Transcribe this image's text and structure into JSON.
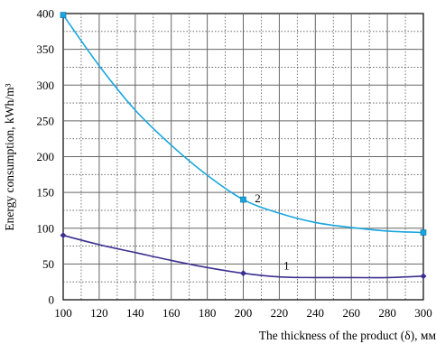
{
  "chart_data": {
    "type": "line",
    "xlabel": "The thickness of the product (δ), мм",
    "ylabel": "Energy consumption, kWh/m³",
    "xlim": [
      100,
      300
    ],
    "ylim": [
      0,
      400
    ],
    "xticks": [
      100,
      120,
      140,
      160,
      180,
      200,
      220,
      240,
      260,
      280,
      300
    ],
    "yticks": [
      0,
      50,
      100,
      150,
      200,
      250,
      300,
      350,
      400
    ],
    "grid": true,
    "series": [
      {
        "name": "1",
        "color": "#3b2f8f",
        "marker": "diamond",
        "points": [
          [
            100,
            90
          ],
          [
            200,
            37
          ],
          [
            300,
            33
          ]
        ],
        "curve": [
          [
            100,
            90
          ],
          [
            120,
            77
          ],
          [
            140,
            66
          ],
          [
            160,
            55
          ],
          [
            180,
            45
          ],
          [
            200,
            37
          ],
          [
            220,
            32
          ],
          [
            240,
            31
          ],
          [
            260,
            31
          ],
          [
            280,
            31
          ],
          [
            300,
            33
          ]
        ],
        "label_at": [
          224,
          42
        ]
      },
      {
        "name": "2",
        "color": "#1aa6df",
        "marker": "square",
        "points": [
          [
            100,
            398
          ],
          [
            200,
            140
          ],
          [
            300,
            94
          ]
        ],
        "curve": [
          [
            100,
            398
          ],
          [
            120,
            327
          ],
          [
            140,
            265
          ],
          [
            160,
            216
          ],
          [
            180,
            174
          ],
          [
            200,
            140
          ],
          [
            220,
            121
          ],
          [
            240,
            108
          ],
          [
            260,
            101
          ],
          [
            280,
            96
          ],
          [
            300,
            94
          ]
        ],
        "label_at": [
          208,
          136
        ]
      }
    ]
  }
}
